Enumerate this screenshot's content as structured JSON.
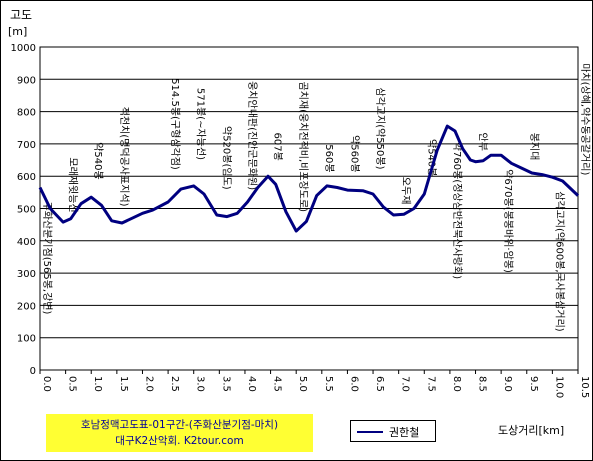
{
  "chart_data": {
    "type": "line",
    "ylabel": "고도",
    "yunit": "[m]",
    "xlabel": "도상거리[km]",
    "xlim": [
      0,
      10.5
    ],
    "ylim": [
      0,
      1000
    ],
    "yticks": [
      0,
      100,
      200,
      300,
      400,
      500,
      600,
      700,
      800,
      900,
      1000
    ],
    "xticks": [
      "0.0",
      "0.5",
      "1.0",
      "1.5",
      "2.0",
      "2.5",
      "3.0",
      "3.5",
      "4.0",
      "4.5",
      "5.0",
      "5.5",
      "6.0",
      "6.5",
      "7.0",
      "7.5",
      "8.0",
      "8.5",
      "9.0",
      "9.5",
      "10.0",
      "10.5"
    ],
    "grid": true,
    "legend": "bottom",
    "series": [
      {
        "name": "권한철",
        "color": "#000080",
        "x": [
          0.0,
          0.2,
          0.45,
          0.6,
          0.8,
          1.0,
          1.2,
          1.4,
          1.6,
          1.8,
          2.0,
          2.2,
          2.5,
          2.75,
          3.0,
          3.2,
          3.45,
          3.65,
          3.85,
          4.05,
          4.25,
          4.45,
          4.6,
          4.8,
          5.0,
          5.2,
          5.4,
          5.6,
          5.8,
          6.0,
          6.3,
          6.5,
          6.7,
          6.9,
          7.1,
          7.3,
          7.5,
          7.75,
          7.95,
          8.1,
          8.25,
          8.4,
          8.5,
          8.65,
          8.8,
          9.0,
          9.2,
          9.4,
          9.6,
          9.8,
          10.0,
          10.2,
          10.5
        ],
        "y": [
          565,
          500,
          458,
          468,
          515,
          535,
          510,
          462,
          455,
          470,
          485,
          495,
          520,
          560,
          570,
          545,
          480,
          475,
          485,
          520,
          565,
          600,
          575,
          490,
          430,
          460,
          540,
          570,
          565,
          557,
          555,
          545,
          505,
          480,
          482,
          500,
          545,
          680,
          755,
          740,
          685,
          650,
          645,
          648,
          665,
          665,
          640,
          625,
          610,
          605,
          597,
          585,
          540
        ]
      }
    ],
    "annotations": [
      {
        "x": 0.0,
        "text": "주화산분기점(565봉,강변)"
      },
      {
        "x": 0.5,
        "text": "모래재윗능선"
      },
      {
        "x": 1.0,
        "text": "약540봉"
      },
      {
        "x": 1.5,
        "text": "적천치(명덕공사표지석)"
      },
      {
        "x": 2.5,
        "text": "514.5봉(구형삼각점)"
      },
      {
        "x": 3.0,
        "text": "571봉(~자능선)"
      },
      {
        "x": 3.5,
        "text": "약520봉(임도)"
      },
      {
        "x": 4.0,
        "text": "웅치안내판(진안군문화원)"
      },
      {
        "x": 4.5,
        "text": "607봉"
      },
      {
        "x": 5.0,
        "text": "곰치재(웅치전적비,비포장도로)"
      },
      {
        "x": 5.5,
        "text": "560봉"
      },
      {
        "x": 6.0,
        "text": "약560봉"
      },
      {
        "x": 6.5,
        "text": "삼각고지(약550봉)"
      },
      {
        "x": 7.0,
        "text": "오두재"
      },
      {
        "x": 7.5,
        "text": "약540봉"
      },
      {
        "x": 8.0,
        "text": "약760봉(정상삼반전북산사랑회)"
      },
      {
        "x": 8.5,
        "text": "안부"
      },
      {
        "x": 9.0,
        "text": "약670봉(봉봉바위·암봉)"
      },
      {
        "x": 9.5,
        "text": "봉지대"
      },
      {
        "x": 10.0,
        "text": "삼각고지(약600봉,국사봉삼거리)"
      },
      {
        "x": 10.5,
        "text": "마치(상혜,약수동공갈거리)"
      }
    ]
  },
  "info_box": {
    "line1": "호남정맥고도표-01구간-(주화산분기점-마치)",
    "line2": "대구K2산악회. K2tour.com"
  }
}
